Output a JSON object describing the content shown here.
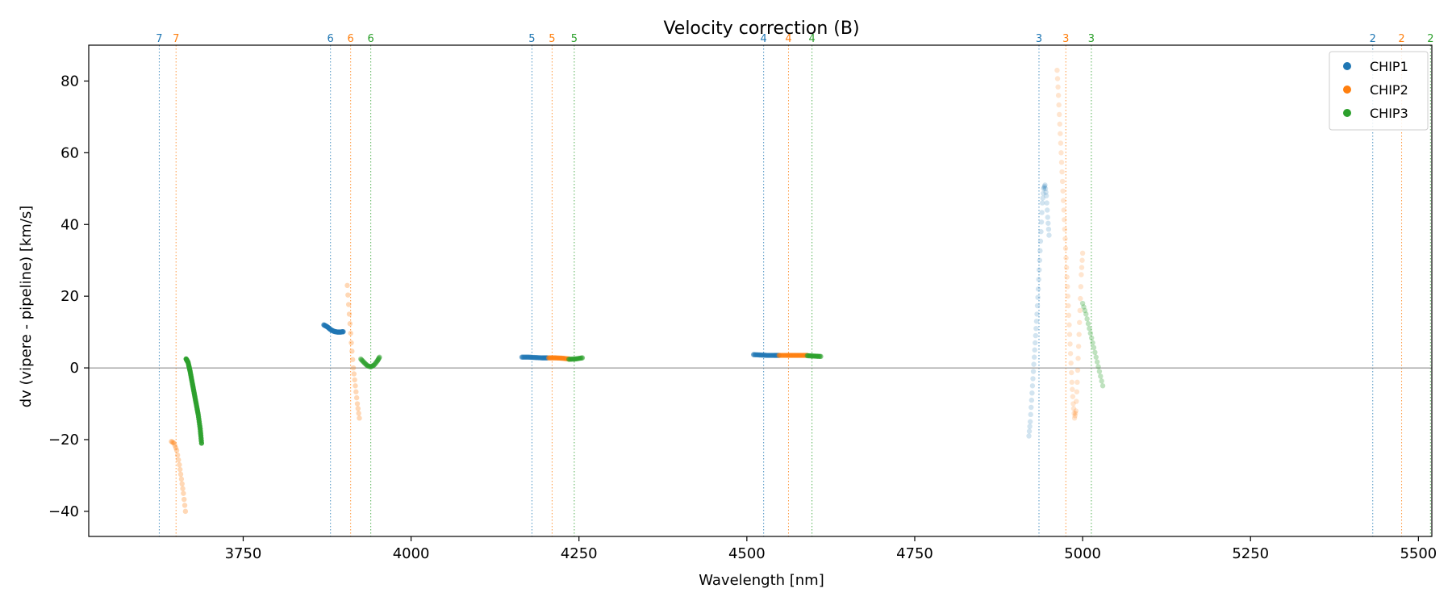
{
  "chart_data": {
    "type": "scatter",
    "title": "Velocity correction (B)",
    "xlabel": "Wavelength [nm]",
    "ylabel": "dv (vipere - pipeline) [km/s]",
    "xlim": [
      3520,
      5520
    ],
    "ylim": [
      -47,
      90
    ],
    "xticks": [
      3750,
      4000,
      4250,
      4500,
      4750,
      5000,
      5250,
      5500
    ],
    "yticks": [
      -40,
      -20,
      0,
      20,
      40,
      60,
      80
    ],
    "xtick_labels": [
      "3750",
      "4000",
      "4250",
      "4500",
      "4750",
      "5000",
      "5250",
      "5500"
    ],
    "ytick_labels": [
      "−40",
      "−20",
      "0",
      "20",
      "40",
      "60",
      "80"
    ],
    "zero_line": 0,
    "grid": false,
    "legend_position": "top-right",
    "colors": {
      "CHIP1": "#1f77b4",
      "CHIP2": "#ff7f0e",
      "CHIP3": "#2ca02c"
    },
    "series": [
      {
        "name": "CHIP1",
        "color": "#1f77b4",
        "segments": [
          {
            "order": "6",
            "opacity": 0.6,
            "points": [
              [
                3870,
                12
              ],
              [
                3875,
                11.5
              ],
              [
                3880,
                10.7
              ],
              [
                3885,
                10.2
              ],
              [
                3890,
                10
              ],
              [
                3895,
                10
              ],
              [
                3899,
                10.1
              ]
            ]
          },
          {
            "order": "5",
            "opacity": 0.6,
            "points": [
              [
                4165,
                3
              ],
              [
                4175,
                3
              ],
              [
                4185,
                2.9
              ],
              [
                4195,
                2.8
              ],
              [
                4203,
                2.8
              ]
            ]
          },
          {
            "order": "4",
            "opacity": 0.6,
            "points": [
              [
                4510,
                3.7
              ],
              [
                4520,
                3.6
              ],
              [
                4530,
                3.5
              ],
              [
                4540,
                3.5
              ],
              [
                4548,
                3.5
              ]
            ]
          },
          {
            "order": "3",
            "opacity": 0.2,
            "points": [
              [
                4920,
                -19
              ],
              [
                4922,
                -15
              ],
              [
                4924,
                -9
              ],
              [
                4926,
                -3
              ],
              [
                4928,
                3
              ],
              [
                4930,
                9
              ],
              [
                4932,
                15
              ],
              [
                4934,
                22
              ],
              [
                4936,
                30
              ],
              [
                4938,
                38
              ],
              [
                4940,
                46
              ],
              [
                4942,
                50
              ],
              [
                4944,
                51
              ],
              [
                4946,
                48
              ],
              [
                4948,
                42
              ],
              [
                4950,
                37
              ]
            ]
          }
        ]
      },
      {
        "name": "CHIP2",
        "color": "#ff7f0e",
        "segments": [
          {
            "order": "7",
            "opacity": 0.3,
            "points": [
              [
                3643,
                -20.5
              ],
              [
                3647,
                -21
              ],
              [
                3651,
                -23
              ],
              [
                3655,
                -27
              ],
              [
                3658,
                -31
              ],
              [
                3661,
                -35
              ],
              [
                3664,
                -40
              ]
            ]
          },
          {
            "order": "6",
            "opacity": 0.3,
            "points": [
              [
                3905,
                23
              ],
              [
                3908,
                15
              ],
              [
                3911,
                7
              ],
              [
                3914,
                0
              ],
              [
                3917,
                -5
              ],
              [
                3920,
                -10
              ],
              [
                3923,
                -14
              ]
            ]
          },
          {
            "order": "5",
            "opacity": 0.6,
            "points": [
              [
                4205,
                2.8
              ],
              [
                4215,
                2.8
              ],
              [
                4225,
                2.7
              ],
              [
                4235,
                2.5
              ]
            ]
          },
          {
            "order": "4",
            "opacity": 0.6,
            "points": [
              [
                4548,
                3.5
              ],
              [
                4560,
                3.5
              ],
              [
                4570,
                3.5
              ],
              [
                4580,
                3.5
              ],
              [
                4590,
                3.5
              ]
            ]
          },
          {
            "order": "3",
            "opacity": 0.2,
            "points": [
              [
                4962,
                83
              ],
              [
                4964,
                76
              ],
              [
                4966,
                68
              ],
              [
                4968,
                60
              ],
              [
                4970,
                52
              ],
              [
                4972,
                44
              ],
              [
                4974,
                36
              ],
              [
                4976,
                28
              ],
              [
                4978,
                20
              ],
              [
                4980,
                12
              ],
              [
                4982,
                4
              ],
              [
                4984,
                -4
              ],
              [
                4986,
                -10
              ],
              [
                4988,
                -14
              ],
              [
                4990,
                -12
              ],
              [
                4992,
                -4
              ],
              [
                4994,
                6
              ],
              [
                4996,
                16
              ],
              [
                4998,
                26
              ],
              [
                5000,
                32
              ]
            ]
          }
        ]
      },
      {
        "name": "CHIP3",
        "color": "#2ca02c",
        "segments": [
          {
            "order": "7",
            "opacity": 0.9,
            "points": [
              [
                3665,
                2.5
              ],
              [
                3668,
                1.5
              ],
              [
                3671,
                -1
              ],
              [
                3674,
                -4
              ],
              [
                3677,
                -7
              ],
              [
                3680,
                -10
              ],
              [
                3683,
                -13
              ],
              [
                3686,
                -17
              ],
              [
                3688,
                -21
              ]
            ]
          },
          {
            "order": "6",
            "opacity": 0.4,
            "points": [
              [
                3925,
                2.5
              ],
              [
                3930,
                1.5
              ],
              [
                3935,
                0.6
              ],
              [
                3940,
                0.3
              ],
              [
                3945,
                0.8
              ],
              [
                3950,
                2
              ],
              [
                3953,
                3
              ]
            ]
          },
          {
            "order": "5",
            "opacity": 0.6,
            "points": [
              [
                4235,
                2.4
              ],
              [
                4245,
                2.5
              ],
              [
                4255,
                2.8
              ]
            ]
          },
          {
            "order": "4",
            "opacity": 0.6,
            "points": [
              [
                4590,
                3.4
              ],
              [
                4600,
                3.3
              ],
              [
                4610,
                3.2
              ]
            ]
          },
          {
            "order": "3",
            "opacity": 0.3,
            "points": [
              [
                5000,
                18
              ],
              [
                5005,
                15
              ],
              [
                5010,
                11
              ],
              [
                5015,
                7
              ],
              [
                5020,
                3
              ],
              [
                5025,
                -1
              ],
              [
                5030,
                -5
              ]
            ]
          }
        ]
      }
    ],
    "order_markers": [
      {
        "label": "7",
        "x": 3625,
        "color": "#1f77b4"
      },
      {
        "label": "7",
        "x": 3650,
        "color": "#ff7f0e"
      },
      {
        "label": "6",
        "x": 3880,
        "color": "#1f77b4"
      },
      {
        "label": "6",
        "x": 3910,
        "color": "#ff7f0e"
      },
      {
        "label": "6",
        "x": 3940,
        "color": "#2ca02c"
      },
      {
        "label": "5",
        "x": 4180,
        "color": "#1f77b4"
      },
      {
        "label": "5",
        "x": 4210,
        "color": "#ff7f0e"
      },
      {
        "label": "5",
        "x": 4243,
        "color": "#2ca02c"
      },
      {
        "label": "4",
        "x": 4525,
        "color": "#1f77b4"
      },
      {
        "label": "4",
        "x": 4562,
        "color": "#ff7f0e"
      },
      {
        "label": "4",
        "x": 4597,
        "color": "#2ca02c"
      },
      {
        "label": "3",
        "x": 4935,
        "color": "#1f77b4"
      },
      {
        "label": "3",
        "x": 4975,
        "color": "#ff7f0e"
      },
      {
        "label": "3",
        "x": 5013,
        "color": "#2ca02c"
      },
      {
        "label": "2",
        "x": 5432,
        "color": "#1f77b4"
      },
      {
        "label": "2",
        "x": 5475,
        "color": "#ff7f0e"
      },
      {
        "label": "2",
        "x": 5518,
        "color": "#2ca02c"
      }
    ]
  }
}
